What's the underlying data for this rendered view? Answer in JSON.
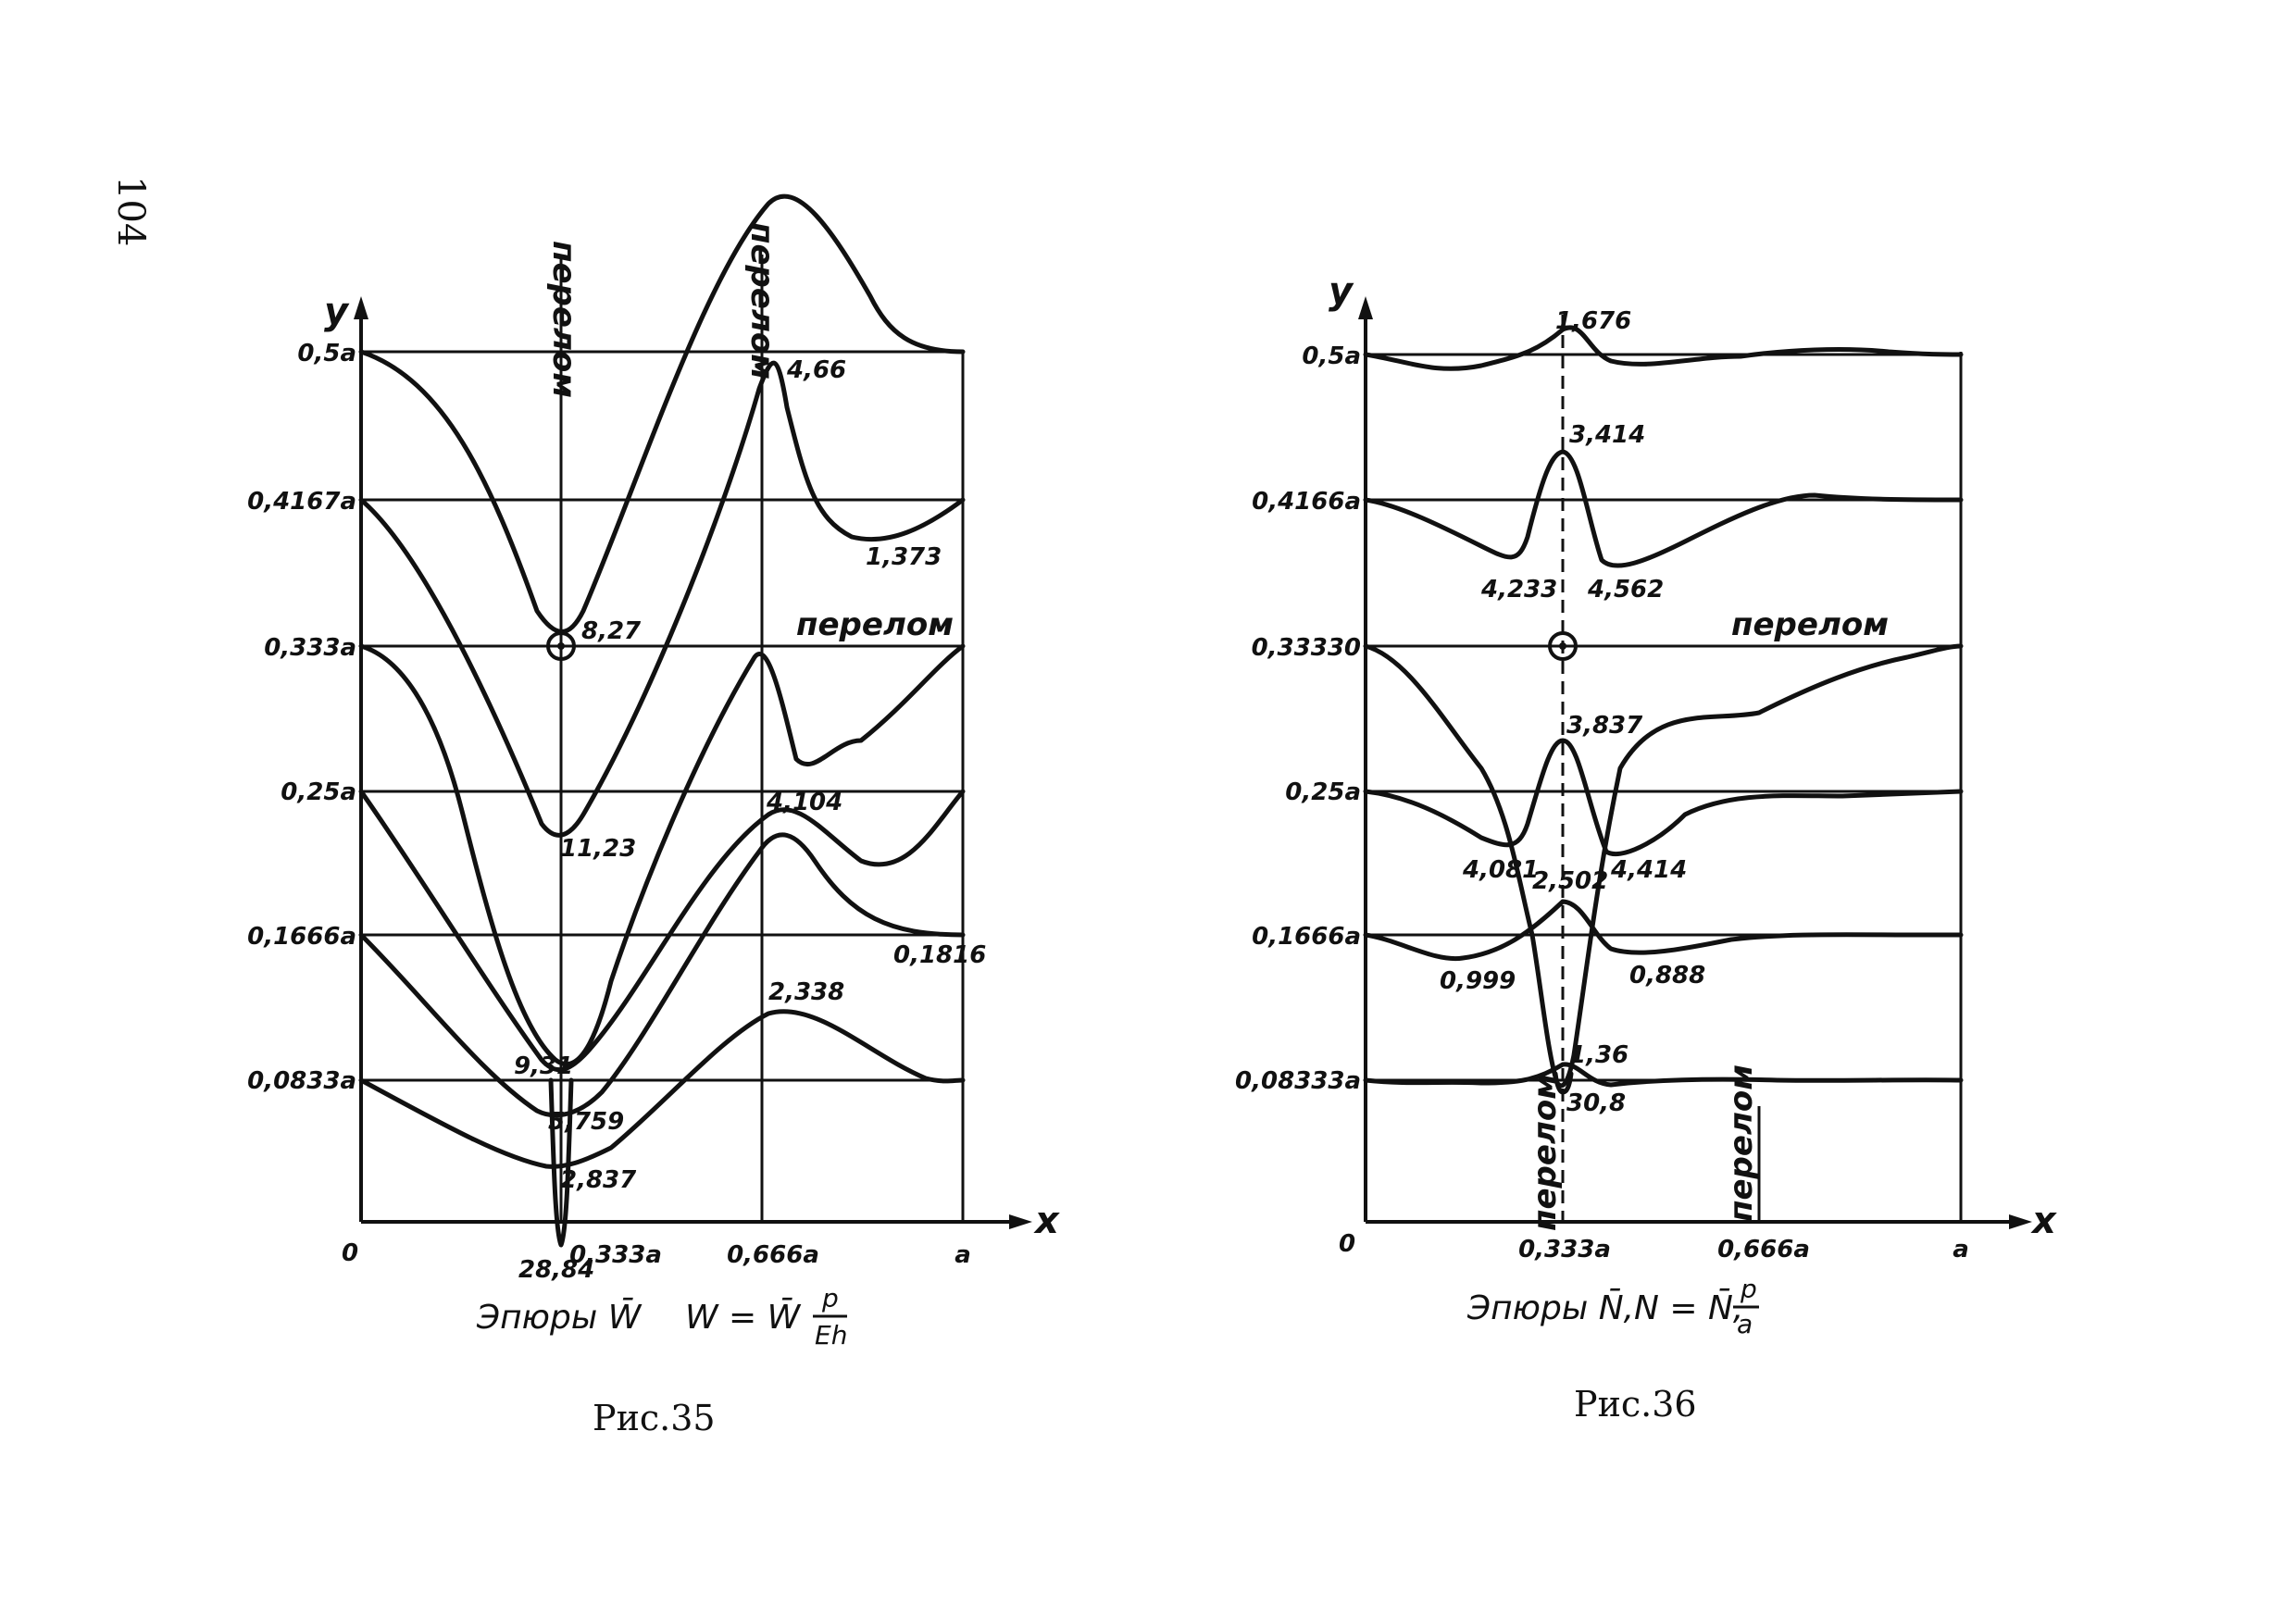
{
  "page": {
    "number": "104"
  },
  "charts": [
    {
      "figure_title": "Рис.35",
      "caption_main": "Эпюры W̄",
      "caption_formula": "W = W̄",
      "caption_fraction_num": "p",
      "caption_fraction_den": "Eh",
      "y_axis_label": "y",
      "x_axis_label": "x",
      "y_ticks": [
        "0",
        "0,0833a",
        "0,1666a",
        "0,25a",
        "0,333a",
        "0,4167a",
        "0,5a"
      ],
      "x_ticks": [
        "0,333a",
        "0,666a",
        "a"
      ],
      "pereloma_labels": [
        "перелом",
        "перелом",
        "перелом"
      ],
      "value_labels": [
        "4,66",
        "1,373",
        "8,27",
        "11,23",
        "4,104",
        "0,1816",
        "2,338",
        "9,31",
        "5,759",
        "2,837",
        "28,84"
      ]
    },
    {
      "figure_title": "Рис.36",
      "caption_main": "Эпюры N̄,",
      "caption_formula": "N = N̄,",
      "caption_fraction_num": "p",
      "caption_fraction_den": "a",
      "y_axis_label": "y",
      "x_axis_label": "x",
      "y_ticks": [
        "0",
        "0,08333a",
        "0,1666a",
        "0,25a",
        "0,33330",
        "0,4166a",
        "0,5a"
      ],
      "x_ticks": [
        "0,333a",
        "0,666a",
        "a"
      ],
      "pereloma_labels": [
        "перелом",
        "перелом",
        "перелом"
      ],
      "value_labels": [
        "1,676",
        "3,414",
        "4,233",
        "4,562",
        "3,837",
        "4,081",
        "4,414",
        "2,502",
        "0,999",
        "0,888",
        "1,36",
        "30,8"
      ]
    }
  ],
  "chart_data": [
    {
      "type": "line",
      "title": "Эпюры W̄   W = W̄ p/Eh",
      "xlabel": "x",
      "ylabel": "y",
      "x_ticks": [
        "0",
        "0,333a",
        "0,666a",
        "a"
      ],
      "y_ticks": [
        "0",
        "0,0833a",
        "0,1666a",
        "0,25a",
        "0,333a",
        "0,4167a",
        "0,5a"
      ],
      "xlim": [
        0,
        1
      ],
      "note_units": "x in units of a",
      "series": [
        {
          "baseline": "0,5a",
          "x": [
            0.0,
            0.1,
            0.2,
            0.3,
            0.333,
            0.4,
            0.5,
            0.6,
            0.666,
            0.75,
            0.85,
            0.95,
            1.0
          ],
          "values": [
            0,
            0.6,
            1.4,
            2.3,
            2.6,
            1.5,
            0.2,
            -1.1,
            -1.4,
            -0.9,
            -0.2,
            0.0,
            0.0
          ]
        },
        {
          "baseline": "0,4167a",
          "x": [
            0.0,
            0.1,
            0.2,
            0.3,
            0.333,
            0.4,
            0.5,
            0.6,
            0.666,
            0.7,
            0.8,
            0.9,
            1.0
          ],
          "values": [
            0,
            1.0,
            2.2,
            3.2,
            3.5,
            2.6,
            0.8,
            -2.2,
            -4.66,
            -2.0,
            0.6,
            1.373,
            0.5
          ]
        },
        {
          "baseline": "0,333a",
          "x": [
            0.0,
            0.05,
            0.15,
            0.25,
            0.333,
            0.37,
            0.45,
            0.55,
            0.666,
            0.75,
            0.85,
            1.0
          ],
          "values": [
            0,
            1.0,
            2.4,
            4.2,
            9.31,
            9.3,
            7.2,
            3.6,
            -0.1,
            1.7,
            1.9,
            0
          ]
        },
        {
          "baseline": "0,25a",
          "x": [
            0.0,
            0.1,
            0.2,
            0.3,
            0.333,
            0.4,
            0.5,
            0.6,
            0.666,
            0.8,
            0.9,
            1.0
          ],
          "values": [
            0,
            2.7,
            5.3,
            7.0,
            11.23,
            6.6,
            2.1,
            -0.4,
            -1.3,
            0.2,
            0.3,
            0
          ]
        },
        {
          "baseline": "0,1666a",
          "x": [
            0.0,
            0.1,
            0.2,
            0.3,
            0.333,
            0.37,
            0.45,
            0.55,
            0.666,
            0.75,
            0.85,
            0.95,
            1.0
          ],
          "values": [
            0,
            2.0,
            3.7,
            5.5,
            5.759,
            5.5,
            3.8,
            1.0,
            -4.104,
            -2.5,
            0.5,
            0.1816,
            0
          ]
        },
        {
          "baseline": "0,0833a",
          "x": [
            0.0,
            0.1,
            0.2,
            0.3,
            0.333,
            0.4,
            0.5,
            0.6,
            0.666,
            0.75,
            0.85,
            0.95,
            1.0
          ],
          "values": [
            0,
            1.1,
            1.9,
            2.5,
            2.837,
            2.3,
            0.9,
            -1.2,
            -2.338,
            -1.6,
            -0.5,
            0.0,
            0
          ]
        },
        {
          "baseline": "0,0833a",
          "x": [
            0.32,
            0.333,
            0.345
          ],
          "values": [
            0,
            28.84,
            0
          ]
        }
      ]
    },
    {
      "type": "line",
      "title": "Эпюры N̄,   N = N̄, p/a",
      "xlabel": "x",
      "ylabel": "y",
      "x_ticks": [
        "0",
        "0,333a",
        "0,666a",
        "a"
      ],
      "y_ticks": [
        "0",
        "0,08333a",
        "0,1666a",
        "0,25a",
        "0,33330",
        "0,4166a",
        "0,5a"
      ],
      "xlim": [
        0,
        1
      ],
      "note_units": "x in units of a",
      "series": [
        {
          "baseline": "0,5a",
          "x": [
            0.0,
            0.1,
            0.2,
            0.3,
            0.333,
            0.36,
            0.45,
            0.6,
            0.75,
            0.9,
            1.0
          ],
          "values": [
            0,
            0.3,
            0.2,
            -0.7,
            -1.676,
            -0.6,
            0.2,
            0.1,
            -0.1,
            0.0,
            0
          ]
        },
        {
          "baseline": "0,4166a",
          "x": [
            0.0,
            0.1,
            0.2,
            0.25,
            0.3,
            0.333,
            0.36,
            0.4,
            0.5,
            0.7,
            0.9,
            1.0
          ],
          "values": [
            0,
            0.3,
            2.4,
            4.233,
            0.5,
            -3.414,
            -1.0,
            4.562,
            2.0,
            0.0,
            0.0,
            0
          ]
        },
        {
          "baseline": "0,25a",
          "x": [
            0.0,
            0.1,
            0.2,
            0.25,
            0.3,
            0.333,
            0.37,
            0.4,
            0.5,
            0.7,
            0.9,
            1.0
          ],
          "values": [
            0,
            0.4,
            3.4,
            4.081,
            -0.3,
            -3.837,
            -0.4,
            4.414,
            2.0,
            0.0,
            0.0,
            0
          ]
        },
        {
          "baseline": "0,1666a",
          "x": [
            0.0,
            0.1,
            0.2,
            0.3,
            0.333,
            0.37,
            0.45,
            0.6,
            0.8,
            1.0
          ],
          "values": [
            0,
            0.999,
            0.9,
            -0.6,
            -2.502,
            -0.8,
            0.888,
            0.1,
            0.0,
            0
          ]
        },
        {
          "baseline": "0,08333a",
          "x": [
            0.0,
            0.1,
            0.2,
            0.3,
            0.333,
            0.36,
            0.45,
            0.6,
            0.8,
            1.0
          ],
          "values": [
            0,
            0.1,
            0.1,
            0.0,
            -1.36,
            0.0,
            0.1,
            0.0,
            0.0,
            0
          ]
        },
        {
          "baseline": "0,08333a",
          "x": [
            0.32,
            0.333,
            0.345
          ],
          "values": [
            0,
            30.8,
            0
          ]
        }
      ]
    }
  ]
}
